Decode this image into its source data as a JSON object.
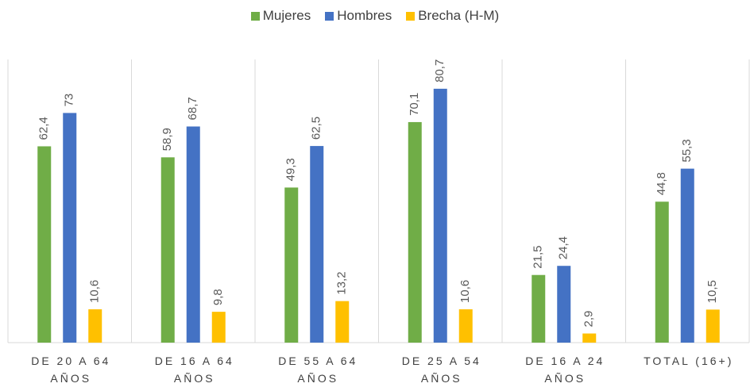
{
  "chart_data": {
    "type": "bar",
    "categories": [
      "DE 20 A 64 AÑOS",
      "DE 16 A 64 AÑOS",
      "DE 55 A 64 AÑOS",
      "DE 25 A 54 AÑOS",
      "DE 16 A 24 AÑOS",
      "TOTAL (16+)"
    ],
    "series": [
      {
        "name": "Mujeres",
        "color": "#70ad47",
        "values": [
          62.4,
          58.9,
          49.3,
          70.1,
          21.5,
          44.8
        ],
        "value_labels": [
          "62,4",
          "58,9",
          "49,3",
          "70,1",
          "21,5",
          "44,8"
        ]
      },
      {
        "name": "Hombres",
        "color": "#4472c4",
        "values": [
          73,
          68.7,
          62.5,
          80.7,
          24.4,
          55.3
        ],
        "value_labels": [
          "73",
          "68,7",
          "62,5",
          "80,7",
          "24,4",
          "55,3"
        ]
      },
      {
        "name": "Brecha (H-M)",
        "color": "#ffc000",
        "values": [
          10.6,
          9.8,
          13.2,
          10.6,
          2.9,
          10.5
        ],
        "value_labels": [
          "10,6",
          "9,8",
          "13,2",
          "10,6",
          "2,9",
          "10,5"
        ]
      }
    ],
    "ylim": [
      0,
      90
    ],
    "legend": "top"
  }
}
